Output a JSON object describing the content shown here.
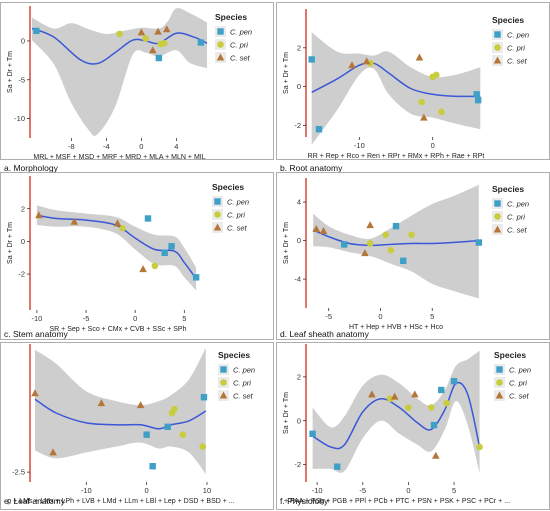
{
  "colors": {
    "pen": "#3fa0c7",
    "pri": "#c9cc3f",
    "set": "#b5763a",
    "curve": "#3b58d6",
    "band": "#bdbdbd",
    "redline": "#d23a2a",
    "tick": "#333333"
  },
  "legend_title": "Species",
  "legend_items": [
    {
      "label": "C. pen",
      "shape": "square",
      "color": "#3fa0c7"
    },
    {
      "label": "C. pri",
      "shape": "circle",
      "color": "#c9cc3f"
    },
    {
      "label": "C. set",
      "shape": "triangle",
      "color": "#b5763a"
    }
  ],
  "chart_data": [
    {
      "type": "scatter",
      "caption": "a. Morphology",
      "xlabel": "MRL + MSF + MSD + MRF + MRD + MLA + MLN + MIL",
      "ylabel": "Sa + Dr + Tm",
      "xlim": [
        -12.5,
        7.5
      ],
      "ylim": [
        -12.5,
        4.5
      ],
      "xticks": [
        -8,
        -4,
        0,
        4
      ],
      "yticks": [
        -10,
        -5,
        0
      ],
      "series": [
        {
          "name": "C. pen",
          "shape": "square",
          "points": [
            [
              -12,
              1.3
            ],
            [
              2.0,
              -2.2
            ],
            [
              6.8,
              -0.2
            ]
          ]
        },
        {
          "name": "C. pri",
          "shape": "circle",
          "points": [
            [
              -2.5,
              0.9
            ],
            [
              0.5,
              0.3
            ],
            [
              2.2,
              -0.4
            ],
            [
              2.6,
              -0.3
            ]
          ]
        },
        {
          "name": "C. set",
          "shape": "triangle",
          "points": [
            [
              0,
              1.1
            ],
            [
              1.3,
              -1.2
            ],
            [
              1.9,
              1.2
            ],
            [
              2.9,
              1.5
            ]
          ]
        }
      ],
      "fit": [
        [
          -12.5,
          1.6
        ],
        [
          -10,
          0.5
        ],
        [
          -7,
          -2.4
        ],
        [
          -5,
          -2.9
        ],
        [
          -3,
          -1.5
        ],
        [
          -1,
          0.1
        ],
        [
          0.5,
          0.0
        ],
        [
          2,
          -0.3
        ],
        [
          4,
          1.0
        ],
        [
          6,
          0.5
        ],
        [
          7.5,
          -0.3
        ]
      ],
      "band_upper": [
        [
          -12.5,
          3.0
        ],
        [
          -10,
          1.6
        ],
        [
          -8,
          2.3
        ],
        [
          -6,
          1.5
        ],
        [
          -4,
          0.9
        ],
        [
          -2,
          1.3
        ],
        [
          0,
          1.7
        ],
        [
          2,
          1.6
        ],
        [
          3,
          2.5
        ],
        [
          4,
          4.2
        ],
        [
          5.5,
          3.6
        ],
        [
          7.5,
          2.4
        ]
      ],
      "band_lower": [
        [
          -12.5,
          0.1
        ],
        [
          -10,
          -3.0
        ],
        [
          -8,
          -8.0
        ],
        [
          -6,
          -11.5
        ],
        [
          -5,
          -12.0
        ],
        [
          -3,
          -8.5
        ],
        [
          -1,
          -1.8
        ],
        [
          0.5,
          -1.5
        ],
        [
          2,
          -2.0
        ],
        [
          4,
          -1.2
        ],
        [
          5.5,
          -2.8
        ],
        [
          7.5,
          -3.5
        ]
      ]
    },
    {
      "type": "scatter",
      "caption": "b. Root anatomy",
      "xlabel": "RR + Rep + Rco + Ren + RPr + RMx + RPh + Rae + RPt",
      "ylabel": "Sa + Dr + Tm",
      "xlim": [
        -17,
        7
      ],
      "ylim": [
        -2.6,
        4.0
      ],
      "xticks": [
        -10,
        0
      ],
      "yticks": [
        -2,
        0,
        2
      ],
      "series": [
        {
          "name": "C. pen",
          "shape": "square",
          "points": [
            [
              -16.5,
              1.4
            ],
            [
              -15.5,
              -2.2
            ],
            [
              6.0,
              -0.4
            ],
            [
              6.2,
              -0.7
            ]
          ]
        },
        {
          "name": "C. pri",
          "shape": "circle",
          "points": [
            [
              -8.5,
              1.2
            ],
            [
              -1.5,
              -0.8
            ],
            [
              0,
              0.5
            ],
            [
              0.5,
              0.6
            ],
            [
              1.2,
              -1.3
            ]
          ]
        },
        {
          "name": "C. set",
          "shape": "triangle",
          "points": [
            [
              -11,
              1.1
            ],
            [
              -9,
              1.3
            ],
            [
              -1.8,
              1.5
            ],
            [
              -1.2,
              -1.6
            ]
          ]
        }
      ],
      "fit": [
        [
          -16.5,
          -0.3
        ],
        [
          -13,
          0.4
        ],
        [
          -10,
          1.1
        ],
        [
          -8,
          1.2
        ],
        [
          -6,
          0.7
        ],
        [
          -3,
          -0.1
        ],
        [
          0,
          -0.4
        ],
        [
          3,
          -0.5
        ],
        [
          6.5,
          -0.5
        ]
      ],
      "band_upper": [
        [
          -16.5,
          2.8
        ],
        [
          -13,
          1.8
        ],
        [
          -10,
          1.7
        ],
        [
          -8,
          1.6
        ],
        [
          -6,
          1.8
        ],
        [
          -3,
          1.0
        ],
        [
          0,
          0.5
        ],
        [
          3,
          0.6
        ],
        [
          6.5,
          1.0
        ]
      ],
      "band_lower": [
        [
          -16.5,
          -3.0
        ],
        [
          -13,
          -1.2
        ],
        [
          -10,
          0.6
        ],
        [
          -8,
          0.9
        ],
        [
          -6,
          -0.4
        ],
        [
          -3,
          -1.4
        ],
        [
          0,
          -1.6
        ],
        [
          3,
          -1.9
        ],
        [
          6.5,
          -2.2
        ]
      ]
    },
    {
      "type": "scatter",
      "caption": "c. Stem anatomy",
      "xlabel": "SR + Sep + Sco + CMx + CVB + SSc + SPh",
      "ylabel": "Sa + Dr + Tm",
      "xlim": [
        -10.5,
        7
      ],
      "ylim": [
        -4.2,
        4.0
      ],
      "xticks": [
        -10,
        -5,
        0,
        5
      ],
      "yticks": [
        -2,
        0,
        2
      ],
      "series": [
        {
          "name": "C. pen",
          "shape": "square",
          "points": [
            [
              1.3,
              1.4
            ],
            [
              3.0,
              -0.7
            ],
            [
              3.7,
              -0.3
            ],
            [
              6.2,
              -2.2
            ]
          ]
        },
        {
          "name": "C. pri",
          "shape": "circle",
          "points": [
            [
              -1.3,
              0.8
            ],
            [
              2.0,
              -1.5
            ]
          ]
        },
        {
          "name": "C. set",
          "shape": "triangle",
          "points": [
            [
              -9.8,
              1.6
            ],
            [
              -6.2,
              1.2
            ],
            [
              -1.8,
              1.1
            ],
            [
              0.8,
              -1.7
            ]
          ]
        }
      ],
      "fit": [
        [
          -10,
          1.6
        ],
        [
          -8,
          1.4
        ],
        [
          -5,
          1.3
        ],
        [
          -2,
          1.0
        ],
        [
          0,
          0.2
        ],
        [
          2,
          -0.5
        ],
        [
          4,
          -0.6
        ],
        [
          5,
          -1.3
        ],
        [
          6.2,
          -2.3
        ]
      ],
      "band_upper": [
        [
          -10,
          2.2
        ],
        [
          -8,
          1.9
        ],
        [
          -5,
          1.7
        ],
        [
          -2,
          1.5
        ],
        [
          0,
          0.9
        ],
        [
          2,
          0.4
        ],
        [
          4,
          0.3
        ],
        [
          5,
          -0.4
        ],
        [
          6.2,
          -1.6
        ]
      ],
      "band_lower": [
        [
          -10,
          1.0
        ],
        [
          -8,
          0.9
        ],
        [
          -5,
          0.9
        ],
        [
          -2,
          0.5
        ],
        [
          0,
          -0.5
        ],
        [
          2,
          -1.4
        ],
        [
          4,
          -1.5
        ],
        [
          5,
          -2.2
        ],
        [
          6.2,
          -3.0
        ]
      ]
    },
    {
      "type": "scatter",
      "caption": "d. Leaf sheath anatomy",
      "xlabel": "HT + Hep + HVB + HSc + Hco",
      "ylabel": "Sa + Dr + Tm",
      "xlim": [
        -7,
        10
      ],
      "ylim": [
        -7.0,
        6.5
      ],
      "xticks": [
        -5,
        0,
        5
      ],
      "yticks": [
        -4,
        0,
        4
      ],
      "series": [
        {
          "name": "C. pen",
          "shape": "square",
          "points": [
            [
              -3.5,
              -0.4
            ],
            [
              1.5,
              1.5
            ],
            [
              2.2,
              -2.1
            ],
            [
              9.5,
              -0.2
            ]
          ]
        },
        {
          "name": "C. pri",
          "shape": "circle",
          "points": [
            [
              -1.0,
              -0.3
            ],
            [
              0.5,
              0.6
            ],
            [
              1.0,
              -1.0
            ],
            [
              3.0,
              0.6
            ]
          ]
        },
        {
          "name": "C. set",
          "shape": "triangle",
          "points": [
            [
              -6.2,
              1.2
            ],
            [
              -5.5,
              1.0
            ],
            [
              -1.5,
              -1.3
            ],
            [
              -1.0,
              1.6
            ]
          ]
        }
      ],
      "fit": [
        [
          -6.5,
          1.1
        ],
        [
          -5,
          0.4
        ],
        [
          -3,
          -0.3
        ],
        [
          -1,
          -0.5
        ],
        [
          1,
          -0.4
        ],
        [
          3,
          -0.3
        ],
        [
          5,
          -0.3
        ],
        [
          7,
          -0.2
        ],
        [
          9.5,
          0.0
        ]
      ],
      "band_upper": [
        [
          -6.5,
          2.8
        ],
        [
          -5,
          1.5
        ],
        [
          -3,
          0.6
        ],
        [
          -1,
          0.2
        ],
        [
          1,
          1.3
        ],
        [
          3,
          2.6
        ],
        [
          5,
          3.8
        ],
        [
          7,
          4.6
        ],
        [
          9.5,
          5.8
        ]
      ],
      "band_lower": [
        [
          -6.5,
          -0.6
        ],
        [
          -5,
          -0.7
        ],
        [
          -3,
          -1.2
        ],
        [
          -1,
          -1.6
        ],
        [
          1,
          -2.4
        ],
        [
          3,
          -3.2
        ],
        [
          5,
          -4.5
        ],
        [
          7,
          -5.2
        ],
        [
          9.5,
          -6.0
        ]
      ]
    },
    {
      "type": "scatter",
      "caption": "e. Leaf anatomy",
      "xlabel": "p + LMs + LMx + LPh + LVB + LMd + LLm + LBl + Lep + DSD + BSD + ...",
      "ylabel": "",
      "xlim": [
        -19,
        10.5
      ],
      "ylim": [
        -3.0,
        4.0
      ],
      "xticks": [
        -10,
        0,
        10
      ],
      "yticks": [
        -2.5
      ],
      "series": [
        {
          "name": "C. pen",
          "shape": "square",
          "points": [
            [
              0.0,
              -0.6
            ],
            [
              1.0,
              -2.2
            ],
            [
              3.5,
              -0.2
            ],
            [
              9.5,
              1.3
            ]
          ]
        },
        {
          "name": "C. pri",
          "shape": "circle",
          "points": [
            [
              4.2,
              0.5
            ],
            [
              4.6,
              0.7
            ],
            [
              6.0,
              -0.6
            ],
            [
              9.3,
              -1.2
            ]
          ]
        },
        {
          "name": "C. set",
          "shape": "triangle",
          "points": [
            [
              -18.5,
              1.5
            ],
            [
              -15.5,
              -1.5
            ],
            [
              -7.5,
              1.0
            ],
            [
              -1.0,
              0.9
            ]
          ]
        }
      ],
      "fit": [
        [
          -18.5,
          1.2
        ],
        [
          -15,
          0.5
        ],
        [
          -10,
          0.0
        ],
        [
          -5,
          -0.1
        ],
        [
          -1,
          -0.1
        ],
        [
          2,
          -0.3
        ],
        [
          4,
          -0.1
        ],
        [
          7,
          0.1
        ],
        [
          9.8,
          0.6
        ]
      ],
      "band_upper": [
        [
          -18.5,
          3.7
        ],
        [
          -15,
          3.0
        ],
        [
          -10,
          1.6
        ],
        [
          -5,
          1.1
        ],
        [
          -1,
          0.9
        ],
        [
          2,
          1.1
        ],
        [
          4,
          1.4
        ],
        [
          7,
          2.2
        ],
        [
          9.8,
          3.8
        ]
      ],
      "band_lower": [
        [
          -18.5,
          -1.4
        ],
        [
          -15,
          -1.8
        ],
        [
          -10,
          -1.5
        ],
        [
          -5,
          -1.2
        ],
        [
          -1,
          -1.0
        ],
        [
          2,
          -1.3
        ],
        [
          4,
          -1.2
        ],
        [
          7,
          -1.5
        ],
        [
          9.8,
          -2.6
        ]
      ]
    },
    {
      "type": "scatter",
      "caption": "f. Physiolohy",
      "xlabel": "+ PAA + PSg + PGB + PPl + PCb + PTC + PSN + PSK + PSC + PCr + ...",
      "ylabel": "Sa + Dr + Tm",
      "xlim": [
        -11,
        8.5
      ],
      "ylim": [
        -2.8,
        3.5
      ],
      "xticks": [
        -10,
        -5,
        0,
        5
      ],
      "yticks": [
        -2,
        0,
        2
      ],
      "series": [
        {
          "name": "C. pen",
          "shape": "square",
          "points": [
            [
              -10.5,
              -0.6
            ],
            [
              -7.8,
              -2.1
            ],
            [
              2.8,
              -0.2
            ],
            [
              3.6,
              1.4
            ],
            [
              5.0,
              1.8
            ]
          ]
        },
        {
          "name": "C. pri",
          "shape": "circle",
          "points": [
            [
              -2.0,
              1.0
            ],
            [
              0.0,
              0.6
            ],
            [
              2.5,
              0.6
            ],
            [
              4.2,
              0.8
            ],
            [
              7.8,
              -1.2
            ]
          ]
        },
        {
          "name": "C. set",
          "shape": "triangle",
          "points": [
            [
              -4.0,
              1.2
            ],
            [
              -1.5,
              1.1
            ],
            [
              0.7,
              1.2
            ],
            [
              3.0,
              -1.6
            ]
          ]
        }
      ],
      "fit": [
        [
          -10.5,
          -0.7
        ],
        [
          -8.5,
          -1.2
        ],
        [
          -7,
          -1.1
        ],
        [
          -5,
          0.4
        ],
        [
          -3,
          1.0
        ],
        [
          -1,
          0.6
        ],
        [
          1,
          -0.1
        ],
        [
          2.5,
          -0.4
        ],
        [
          4,
          0.5
        ],
        [
          5.2,
          1.7
        ],
        [
          6.5,
          1.2
        ],
        [
          7.8,
          -1.2
        ]
      ],
      "band_upper": [
        [
          -10.5,
          0.6
        ],
        [
          -8.5,
          -0.3
        ],
        [
          -7,
          0.2
        ],
        [
          -5,
          1.6
        ],
        [
          -3,
          2.1
        ],
        [
          -1,
          1.7
        ],
        [
          1,
          1.0
        ],
        [
          2.5,
          0.7
        ],
        [
          4,
          1.4
        ],
        [
          5.2,
          2.5
        ],
        [
          6.5,
          2.8
        ],
        [
          7.8,
          3.2
        ]
      ],
      "band_lower": [
        [
          -10.5,
          -2.2
        ],
        [
          -8.5,
          -2.2
        ],
        [
          -7,
          -2.3
        ],
        [
          -5,
          -0.8
        ],
        [
          -3,
          0.0
        ],
        [
          -1,
          -0.6
        ],
        [
          1,
          -1.1
        ],
        [
          2.5,
          -1.4
        ],
        [
          4,
          -0.4
        ],
        [
          5.2,
          0.9
        ],
        [
          6.5,
          -0.2
        ],
        [
          7.8,
          -2.4
        ]
      ]
    }
  ]
}
